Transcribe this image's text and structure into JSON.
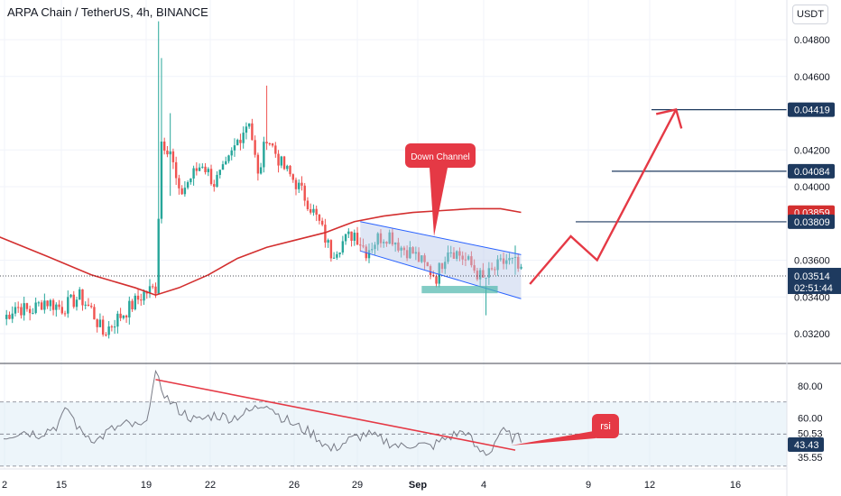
{
  "header": {
    "title": "ARPA Chain / TetherUS, 4h, BINANCE",
    "currency": "USDT"
  },
  "colors": {
    "up": "#26a69a",
    "down": "#ef5350",
    "ma": "#d32f2f",
    "rsi": "#787b86",
    "annotation": "#e53945",
    "level_line": "#1e3a5f",
    "channel_fill": "#b7c7e8",
    "support": "#4db6ac",
    "rsi_band": "#d7e8f5"
  },
  "chart_data": [
    {
      "type": "candlestick",
      "panel": "price",
      "y_ticks": [
        "0.04800",
        "0.04600",
        "0.04200",
        "0.04000",
        "0.03600",
        "0.03400",
        "0.03200"
      ],
      "ylim": [
        0.0312,
        0.049
      ],
      "x_ticks": [
        "2",
        "15",
        "19",
        "22",
        "26",
        "29",
        "Sep",
        "4",
        "9",
        "12",
        "16"
      ],
      "price_labels": [
        {
          "name": "target",
          "value": "0.04419",
          "price": 0.04419,
          "style": "dark"
        },
        {
          "name": "level-2",
          "value": "0.04084",
          "price": 0.04084,
          "style": "dark"
        },
        {
          "name": "ma",
          "value": "0.03859",
          "price": 0.03859,
          "style": "ma"
        },
        {
          "name": "level-1",
          "value": "0.03809",
          "price": 0.03809,
          "style": "dark"
        },
        {
          "name": "last",
          "value": "0.03514",
          "price": 0.03514,
          "style": "last"
        }
      ],
      "countdown": "02:51:44",
      "anchors": [
        [
          0,
          0.0328
        ],
        [
          4,
          0.0335
        ],
        [
          9,
          0.0332
        ],
        [
          14,
          0.0338
        ],
        [
          20,
          0.0334
        ],
        [
          26,
          0.034
        ],
        [
          30,
          0.0333
        ],
        [
          34,
          0.032
        ],
        [
          38,
          0.0327
        ],
        [
          43,
          0.0334
        ],
        [
          48,
          0.0342
        ],
        [
          52,
          0.0345
        ],
        [
          54,
          0.0425
        ],
        [
          57,
          0.042
        ],
        [
          60,
          0.0395
        ],
        [
          64,
          0.0405
        ],
        [
          68,
          0.0413
        ],
        [
          72,
          0.0402
        ],
        [
          76,
          0.041
        ],
        [
          80,
          0.0425
        ],
        [
          84,
          0.0437
        ],
        [
          87,
          0.0405
        ],
        [
          90,
          0.0428
        ],
        [
          95,
          0.0412
        ],
        [
          100,
          0.0402
        ],
        [
          104,
          0.0392
        ],
        [
          108,
          0.038
        ],
        [
          112,
          0.0364
        ],
        [
          116,
          0.037
        ],
        [
          120,
          0.0375
        ],
        [
          124,
          0.0365
        ],
        [
          128,
          0.0372
        ],
        [
          132,
          0.0374
        ],
        [
          136,
          0.0367
        ],
        [
          140,
          0.0364
        ],
        [
          144,
          0.0357
        ],
        [
          148,
          0.0351
        ],
        [
          152,
          0.0367
        ],
        [
          156,
          0.0363
        ],
        [
          160,
          0.0357
        ],
        [
          164,
          0.0349
        ],
        [
          168,
          0.0355
        ],
        [
          172,
          0.036
        ],
        [
          175,
          0.0358
        ],
        [
          177,
          0.0352
        ]
      ],
      "wicks": [
        {
          "i": 53,
          "high": 0.049,
          "low": 0.0345
        },
        {
          "i": 54,
          "high": 0.047,
          "low": 0.038
        },
        {
          "i": 57,
          "high": 0.044,
          "low": 0.0395
        },
        {
          "i": 90,
          "high": 0.0455,
          "low": 0.042
        },
        {
          "i": 165,
          "high": 0.035,
          "low": 0.033
        },
        {
          "i": 175,
          "high": 0.0368,
          "low": 0.0352
        }
      ],
      "moving_average": [
        [
          -2,
          0.0373
        ],
        [
          15,
          0.0362
        ],
        [
          30,
          0.0352
        ],
        [
          45,
          0.0345
        ],
        [
          52,
          0.0341
        ],
        [
          60,
          0.0345
        ],
        [
          70,
          0.0352
        ],
        [
          80,
          0.0361
        ],
        [
          90,
          0.0367
        ],
        [
          100,
          0.0371
        ],
        [
          110,
          0.0375
        ],
        [
          120,
          0.0381
        ],
        [
          130,
          0.0384
        ],
        [
          140,
          0.0386
        ],
        [
          150,
          0.0387
        ],
        [
          160,
          0.0388
        ],
        [
          170,
          0.0388
        ],
        [
          177,
          0.0386
        ]
      ],
      "drawings": {
        "channel_label": "Down Channel",
        "horizontal_levels": [
          0.03809,
          0.04084,
          0.04419
        ],
        "projection_path": [
          [
            180,
            0.0347
          ],
          [
            194,
            0.0373
          ],
          [
            203,
            0.036
          ],
          [
            230,
            0.0442
          ]
        ],
        "channel": {
          "top": [
            [
              122,
              0.0381
            ],
            [
              177,
              0.0363
            ]
          ],
          "bottom": [
            [
              122,
              0.0365
            ],
            [
              177,
              0.0339
            ]
          ]
        },
        "support_zone": [
          [
            143,
            0.0346
          ],
          [
            169,
            0.0342
          ]
        ]
      }
    },
    {
      "type": "line",
      "panel": "rsi",
      "y_ticks": [
        "80.00",
        "60.00"
      ],
      "value_labels": [
        {
          "value": "50.53",
          "y": 50.53,
          "style": "plain"
        },
        {
          "value": "43.43",
          "y": 43.43,
          "style": "dark"
        },
        {
          "value": "35.55",
          "y": 35.55,
          "style": "plain"
        }
      ],
      "ylim": [
        30,
        90
      ],
      "levels": [
        70,
        50,
        30
      ],
      "series": [
        [
          0,
          48
        ],
        [
          6,
          52
        ],
        [
          12,
          50
        ],
        [
          18,
          55
        ],
        [
          22,
          66
        ],
        [
          26,
          52
        ],
        [
          32,
          46
        ],
        [
          36,
          52
        ],
        [
          42,
          56
        ],
        [
          48,
          54
        ],
        [
          52,
          86
        ],
        [
          56,
          72
        ],
        [
          60,
          65
        ],
        [
          66,
          58
        ],
        [
          72,
          62
        ],
        [
          78,
          60
        ],
        [
          84,
          64
        ],
        [
          90,
          70
        ],
        [
          94,
          62
        ],
        [
          100,
          55
        ],
        [
          106,
          50
        ],
        [
          112,
          40
        ],
        [
          118,
          46
        ],
        [
          124,
          50
        ],
        [
          130,
          46
        ],
        [
          136,
          42
        ],
        [
          140,
          44
        ],
        [
          146,
          42
        ],
        [
          152,
          48
        ],
        [
          158,
          52
        ],
        [
          162,
          40
        ],
        [
          166,
          38
        ],
        [
          170,
          52
        ],
        [
          174,
          48
        ],
        [
          177,
          47
        ]
      ],
      "trendline": [
        [
          52,
          84
        ],
        [
          175,
          40
        ]
      ],
      "annotation": {
        "label": "rsi",
        "arrow_to": [
          175,
          40
        ]
      }
    }
  ]
}
